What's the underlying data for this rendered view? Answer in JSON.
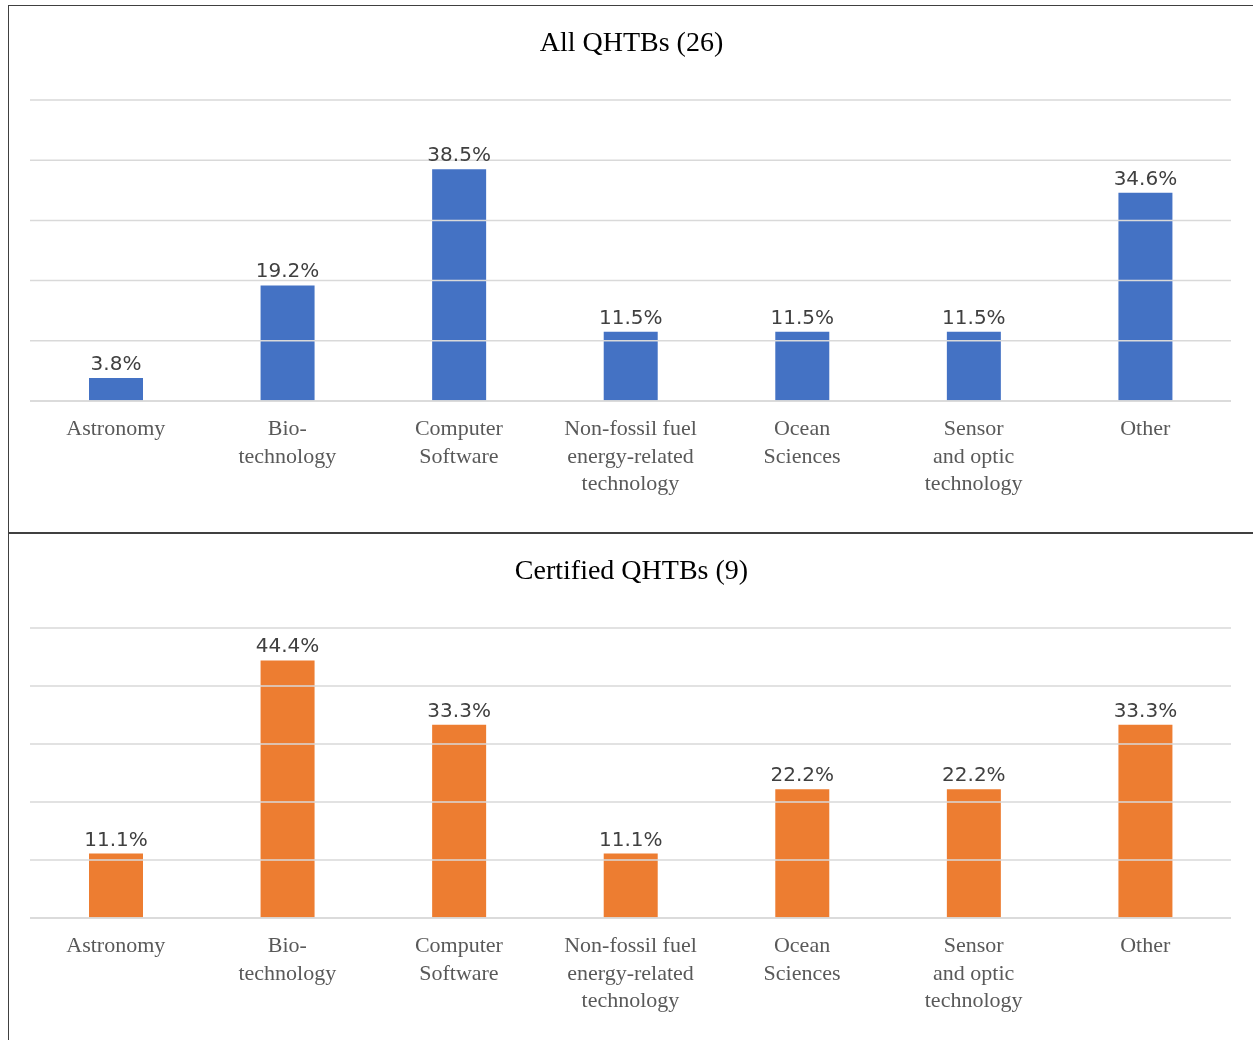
{
  "chart_data": [
    {
      "type": "bar",
      "title": "All QHTBs (26)",
      "categories": [
        "Astronomy",
        "Bio-\ntechnology",
        "Computer\nSoftware",
        "Non-fossil fuel\nenergy-related\ntechnology",
        "Ocean\nSciences",
        "Sensor\nand optic\ntechnology",
        "Other"
      ],
      "values": [
        3.8,
        19.2,
        38.5,
        11.5,
        11.5,
        11.5,
        34.6
      ],
      "value_labels": [
        "3.8%",
        "19.2%",
        "38.5%",
        "11.5%",
        "11.5%",
        "11.5%",
        "34.6%"
      ],
      "color": "#4472c4",
      "ylim": [
        0,
        50
      ],
      "yticks": [
        {
          "value": 0,
          "label": null
        },
        {
          "value": 10,
          "label": null
        },
        {
          "value": 20,
          "label": null
        },
        {
          "value": 30,
          "label": null
        },
        {
          "value": 40,
          "label": null
        },
        {
          "value": 50,
          "label": null
        }
      ],
      "grid": "y",
      "tick_labels": "x"
    },
    {
      "type": "bar",
      "title": "Certified QHTBs (9)",
      "categories": [
        "Astronomy",
        "Bio-\ntechnology",
        "Computer\nSoftware",
        "Non-fossil fuel\nenergy-related\ntechnology",
        "Ocean\nSciences",
        "Sensor\nand optic\ntechnology",
        "Other"
      ],
      "values": [
        11.1,
        44.4,
        33.3,
        11.1,
        22.2,
        22.2,
        33.3
      ],
      "value_labels": [
        "11.1%",
        "44.4%",
        "33.3%",
        "11.1%",
        "22.2%",
        "22.2%",
        "33.3%"
      ],
      "color": "#ed7d31",
      "ylim": [
        0,
        50
      ],
      "yticks": [
        {
          "value": 0,
          "label": null
        },
        {
          "value": 10,
          "label": null
        },
        {
          "value": 20,
          "label": null
        },
        {
          "value": 30,
          "label": null
        },
        {
          "value": 40,
          "label": null
        },
        {
          "value": 50,
          "label": null
        }
      ],
      "grid": "y",
      "tick_labels": "x"
    }
  ]
}
